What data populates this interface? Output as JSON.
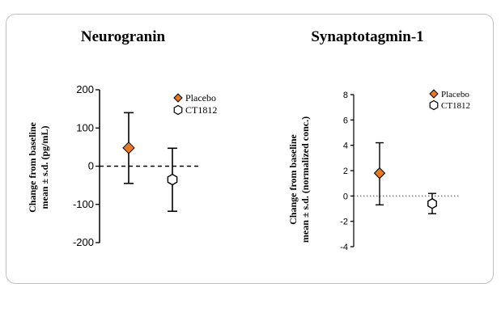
{
  "colors": {
    "placebo": "#e87722",
    "ct1812_fill": "#ffffff",
    "stroke": "#000000"
  },
  "chart_data": [
    {
      "type": "scatter",
      "title": "Neurogranin",
      "ylabel_line1": "Change from baseline",
      "ylabel_line2": "mean ± s.d. (pg/mL)",
      "ylim": [
        -200,
        200
      ],
      "yticks": [
        200,
        100,
        0,
        -100,
        -200
      ],
      "ytick_labels": [
        "200",
        "100",
        "0",
        "-100",
        "-200"
      ],
      "reference_line": {
        "y": 0,
        "style": "dashed"
      },
      "legend": [
        "Placebo",
        "CT1812"
      ],
      "series": [
        {
          "name": "Placebo",
          "marker": "diamond",
          "mean": 48,
          "upper": 140,
          "lower": -45
        },
        {
          "name": "CT1812",
          "marker": "hexagon",
          "mean": -35,
          "upper": 47,
          "lower": -118
        }
      ]
    },
    {
      "type": "scatter",
      "title": "Synaptotagmin-1",
      "ylabel_line1": "Change from baseline",
      "ylabel_line2": "mean ± s.d. (normalized conc.)",
      "ylim": [
        -4,
        8
      ],
      "yticks": [
        8,
        6,
        4,
        2,
        0,
        -2,
        -4
      ],
      "ytick_labels": [
        "8",
        "6",
        "4",
        "2",
        "0",
        "-2",
        "-4"
      ],
      "reference_line": {
        "y": 0,
        "style": "dotted"
      },
      "legend": [
        "Placebo",
        "CT1812"
      ],
      "series": [
        {
          "name": "Placebo",
          "marker": "diamond",
          "mean": 1.8,
          "upper": 4.2,
          "lower": -0.7
        },
        {
          "name": "CT1812",
          "marker": "hexagon",
          "mean": -0.6,
          "upper": 0.2,
          "lower": -1.4
        }
      ]
    }
  ]
}
